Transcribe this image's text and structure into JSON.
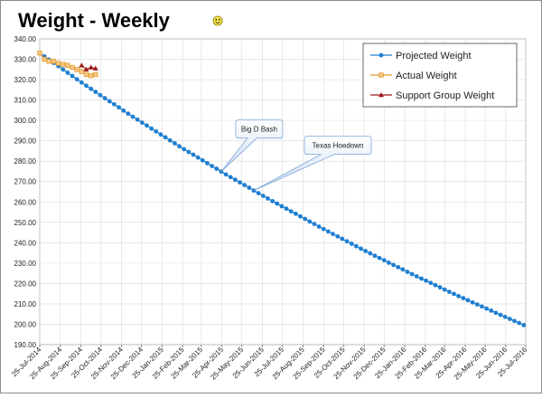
{
  "chart_data": {
    "type": "line",
    "title": "Weight - Weekly",
    "xlim": [
      "2014-07-25",
      "2016-07-25"
    ],
    "xticks": [
      {
        "value": "2014-07-25",
        "label": "25-Jul-2014"
      },
      {
        "value": "2014-08-25",
        "label": "25-Aug-2014"
      },
      {
        "value": "2014-09-25",
        "label": "25-Sep-2014"
      },
      {
        "value": "2014-10-25",
        "label": "25-Oct-2014"
      },
      {
        "value": "2014-11-25",
        "label": "25-Nov-2014"
      },
      {
        "value": "2014-12-25",
        "label": "25-Dec-2014"
      },
      {
        "value": "2015-01-25",
        "label": "25-Jan-2015"
      },
      {
        "value": "2015-02-25",
        "label": "25-Feb-2015"
      },
      {
        "value": "2015-03-25",
        "label": "25-Mar-2015"
      },
      {
        "value": "2015-04-25",
        "label": "25-Apr-2015"
      },
      {
        "value": "2015-05-25",
        "label": "25-May-2015"
      },
      {
        "value": "2015-06-25",
        "label": "25-Jun-2015"
      },
      {
        "value": "2015-07-25",
        "label": "25-Jul-2015"
      },
      {
        "value": "2015-08-25",
        "label": "25-Aug-2015"
      },
      {
        "value": "2015-09-25",
        "label": "25-Sep-2015"
      },
      {
        "value": "2015-10-25",
        "label": "25-Oct-2015"
      },
      {
        "value": "2015-11-25",
        "label": "25-Nov-2015"
      },
      {
        "value": "2015-12-25",
        "label": "25-Dec-2015"
      },
      {
        "value": "2016-01-25",
        "label": "25-Jan-2016"
      },
      {
        "value": "2016-02-25",
        "label": "25-Feb-2016"
      },
      {
        "value": "2016-03-25",
        "label": "25-Mar-2016"
      },
      {
        "value": "2016-04-25",
        "label": "25-Apr-2016"
      },
      {
        "value": "2016-05-25",
        "label": "25-May-2016"
      },
      {
        "value": "2016-06-25",
        "label": "25-Jun-2016"
      },
      {
        "value": "2016-07-25",
        "label": "25-Jul-2016"
      }
    ],
    "ylim": [
      190,
      340
    ],
    "yticks": [
      {
        "value": 190,
        "label": "190.00"
      },
      {
        "value": 200,
        "label": "200.00"
      },
      {
        "value": 210,
        "label": "210.00"
      },
      {
        "value": 220,
        "label": "220.00"
      },
      {
        "value": 230,
        "label": "230.00"
      },
      {
        "value": 240,
        "label": "240.00"
      },
      {
        "value": 250,
        "label": "250.00"
      },
      {
        "value": 260,
        "label": "260.00"
      },
      {
        "value": 270,
        "label": "270.00"
      },
      {
        "value": 280,
        "label": "280.00"
      },
      {
        "value": 290,
        "label": "290.00"
      },
      {
        "value": 300,
        "label": "300.00"
      },
      {
        "value": 310,
        "label": "310.00"
      },
      {
        "value": 320,
        "label": "320.00"
      },
      {
        "value": 330,
        "label": "330.00"
      },
      {
        "value": 340,
        "label": "340.00"
      }
    ],
    "grid": true,
    "legend": "top-right",
    "series": [
      {
        "name": "Projected Weight",
        "color": "#1f7fd1",
        "marker": "circle",
        "x": [
          "2014-07-25",
          "2014-08-01",
          "2014-08-08",
          "2014-08-15",
          "2014-08-22",
          "2014-08-29",
          "2014-09-05",
          "2014-09-12",
          "2014-09-19",
          "2014-09-26",
          "2014-10-03",
          "2014-10-10",
          "2014-10-17",
          "2014-10-24",
          "2014-10-31",
          "2014-11-07",
          "2014-11-14",
          "2014-11-21",
          "2014-11-28",
          "2014-12-05",
          "2014-12-12",
          "2014-12-19",
          "2014-12-26",
          "2015-01-02",
          "2015-01-09",
          "2015-01-16",
          "2015-01-23",
          "2015-01-30",
          "2015-02-06",
          "2015-02-13",
          "2015-02-20",
          "2015-02-27",
          "2015-03-06",
          "2015-03-13",
          "2015-03-20",
          "2015-03-27",
          "2015-04-03",
          "2015-04-10",
          "2015-04-17",
          "2015-04-24",
          "2015-05-01",
          "2015-05-08",
          "2015-05-15",
          "2015-05-22",
          "2015-05-29",
          "2015-06-05",
          "2015-06-12",
          "2015-06-19",
          "2015-06-26",
          "2015-07-03",
          "2015-07-10",
          "2015-07-17",
          "2015-07-24",
          "2015-07-31",
          "2015-08-07",
          "2015-08-14",
          "2015-08-21",
          "2015-08-28",
          "2015-09-04",
          "2015-09-11",
          "2015-09-18",
          "2015-09-25",
          "2015-10-02",
          "2015-10-09",
          "2015-10-16",
          "2015-10-23",
          "2015-10-30",
          "2015-11-06",
          "2015-11-13",
          "2015-11-20",
          "2015-11-27",
          "2015-12-04",
          "2015-12-11",
          "2015-12-18",
          "2015-12-25",
          "2016-01-01",
          "2016-01-08",
          "2016-01-15",
          "2016-01-22",
          "2016-01-29",
          "2016-02-05",
          "2016-02-12",
          "2016-02-19",
          "2016-02-26",
          "2016-03-04",
          "2016-03-11",
          "2016-03-18",
          "2016-03-25",
          "2016-04-01",
          "2016-04-08",
          "2016-04-15",
          "2016-04-22",
          "2016-04-29",
          "2016-05-06",
          "2016-05-13",
          "2016-05-20",
          "2016-05-27",
          "2016-06-03",
          "2016-06-10",
          "2016-06-17",
          "2016-06-24",
          "2016-07-01",
          "2016-07-08",
          "2016-07-15",
          "2016-07-22"
        ],
        "values": [
          333.0,
          331.4,
          329.8,
          328.2,
          326.6,
          325.0,
          323.4,
          321.8,
          320.2,
          318.6,
          317.0,
          315.5,
          314.0,
          312.4,
          310.9,
          309.4,
          307.9,
          306.4,
          304.8,
          303.3,
          301.8,
          300.4,
          298.9,
          297.5,
          296.0,
          294.6,
          293.1,
          291.7,
          290.2,
          288.8,
          287.3,
          285.9,
          284.5,
          283.2,
          281.8,
          280.4,
          279.0,
          277.6,
          276.3,
          274.9,
          273.5,
          272.2,
          270.9,
          269.6,
          268.3,
          267.0,
          265.6,
          264.3,
          263.0,
          261.7,
          260.4,
          259.2,
          257.9,
          256.7,
          255.4,
          254.2,
          252.9,
          251.7,
          250.4,
          249.2,
          247.9,
          246.7,
          245.5,
          244.3,
          243.1,
          241.9,
          240.7,
          239.5,
          238.3,
          237.1,
          235.9,
          234.8,
          233.6,
          232.5,
          231.4,
          230.2,
          229.1,
          228.0,
          226.9,
          225.7,
          224.6,
          223.5,
          222.4,
          221.4,
          220.3,
          219.2,
          218.1,
          217.0,
          215.9,
          214.9,
          213.8,
          212.8,
          211.8,
          210.7,
          209.7,
          208.7,
          207.7,
          206.7,
          205.6,
          204.6,
          203.6,
          202.6,
          201.6,
          200.6,
          199.6
        ]
      },
      {
        "name": "Actual Weight",
        "color": "#e39b2f",
        "marker": "square",
        "x": [
          "2014-07-25",
          "2014-08-01",
          "2014-08-08",
          "2014-08-15",
          "2014-08-22",
          "2014-08-29",
          "2014-09-05",
          "2014-09-12",
          "2014-09-19",
          "2014-09-26",
          "2014-10-03",
          "2014-10-10",
          "2014-10-17"
        ],
        "values": [
          333.0,
          330.0,
          329.0,
          329.0,
          328.0,
          327.5,
          327.0,
          326.0,
          325.0,
          324.0,
          322.5,
          322.0,
          322.5
        ]
      },
      {
        "name": "Support Group Weight",
        "color": "#9b1b1b",
        "marker": "triangle",
        "x": [
          "2014-09-26",
          "2014-10-03",
          "2014-10-10",
          "2014-10-17"
        ],
        "values": [
          327.0,
          325.0,
          326.0,
          325.5
        ]
      }
    ],
    "annotations": [
      {
        "text": "Big D Bash",
        "x": "2015-04-24",
        "y": 274.9
      },
      {
        "text": "Texas Hoedown",
        "x": "2015-06-12",
        "y": 265.6
      }
    ]
  }
}
